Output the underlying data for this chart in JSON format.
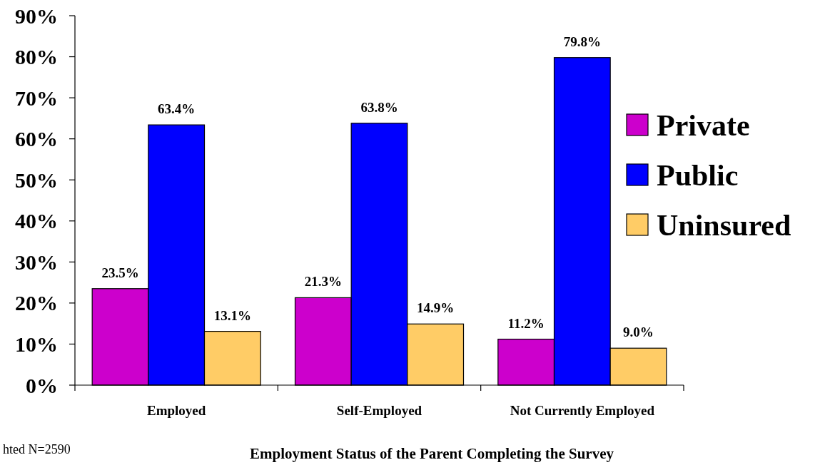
{
  "chart_data": {
    "type": "bar",
    "xlabel": "Employment Status of the Parent Completing the Survey",
    "categories": [
      "Employed",
      "Self-Employed",
      "Not Currently Employed"
    ],
    "series": [
      {
        "name": "Private",
        "color": "#cc00cc",
        "values": [
          23.5,
          21.3,
          11.2
        ],
        "value_labels": [
          "23.5%",
          "21.3%",
          "11.2%"
        ]
      },
      {
        "name": "Public",
        "color": "#0000ff",
        "values": [
          63.4,
          63.8,
          79.8
        ],
        "value_labels": [
          "63.4%",
          "63.8%",
          "79.8%"
        ]
      },
      {
        "name": "Uninsured",
        "color": "#ffcc66",
        "values": [
          13.1,
          14.9,
          9.0
        ],
        "value_labels": [
          "13.1%",
          "14.9%",
          "9.0%"
        ]
      }
    ],
    "ylim": [
      0,
      90
    ],
    "yticks": [
      {
        "value": 0,
        "label": "0%"
      },
      {
        "value": 10,
        "label": "10%"
      },
      {
        "value": 20,
        "label": "20%"
      },
      {
        "value": 30,
        "label": "30%"
      },
      {
        "value": 40,
        "label": "40%"
      },
      {
        "value": 50,
        "label": "50%"
      },
      {
        "value": 60,
        "label": "60%"
      },
      {
        "value": 70,
        "label": "70%"
      },
      {
        "value": 80,
        "label": "80%"
      },
      {
        "value": 90,
        "label": "90%"
      }
    ],
    "grid": false,
    "legend": "right",
    "annotations": [
      "hted N=2590"
    ]
  }
}
